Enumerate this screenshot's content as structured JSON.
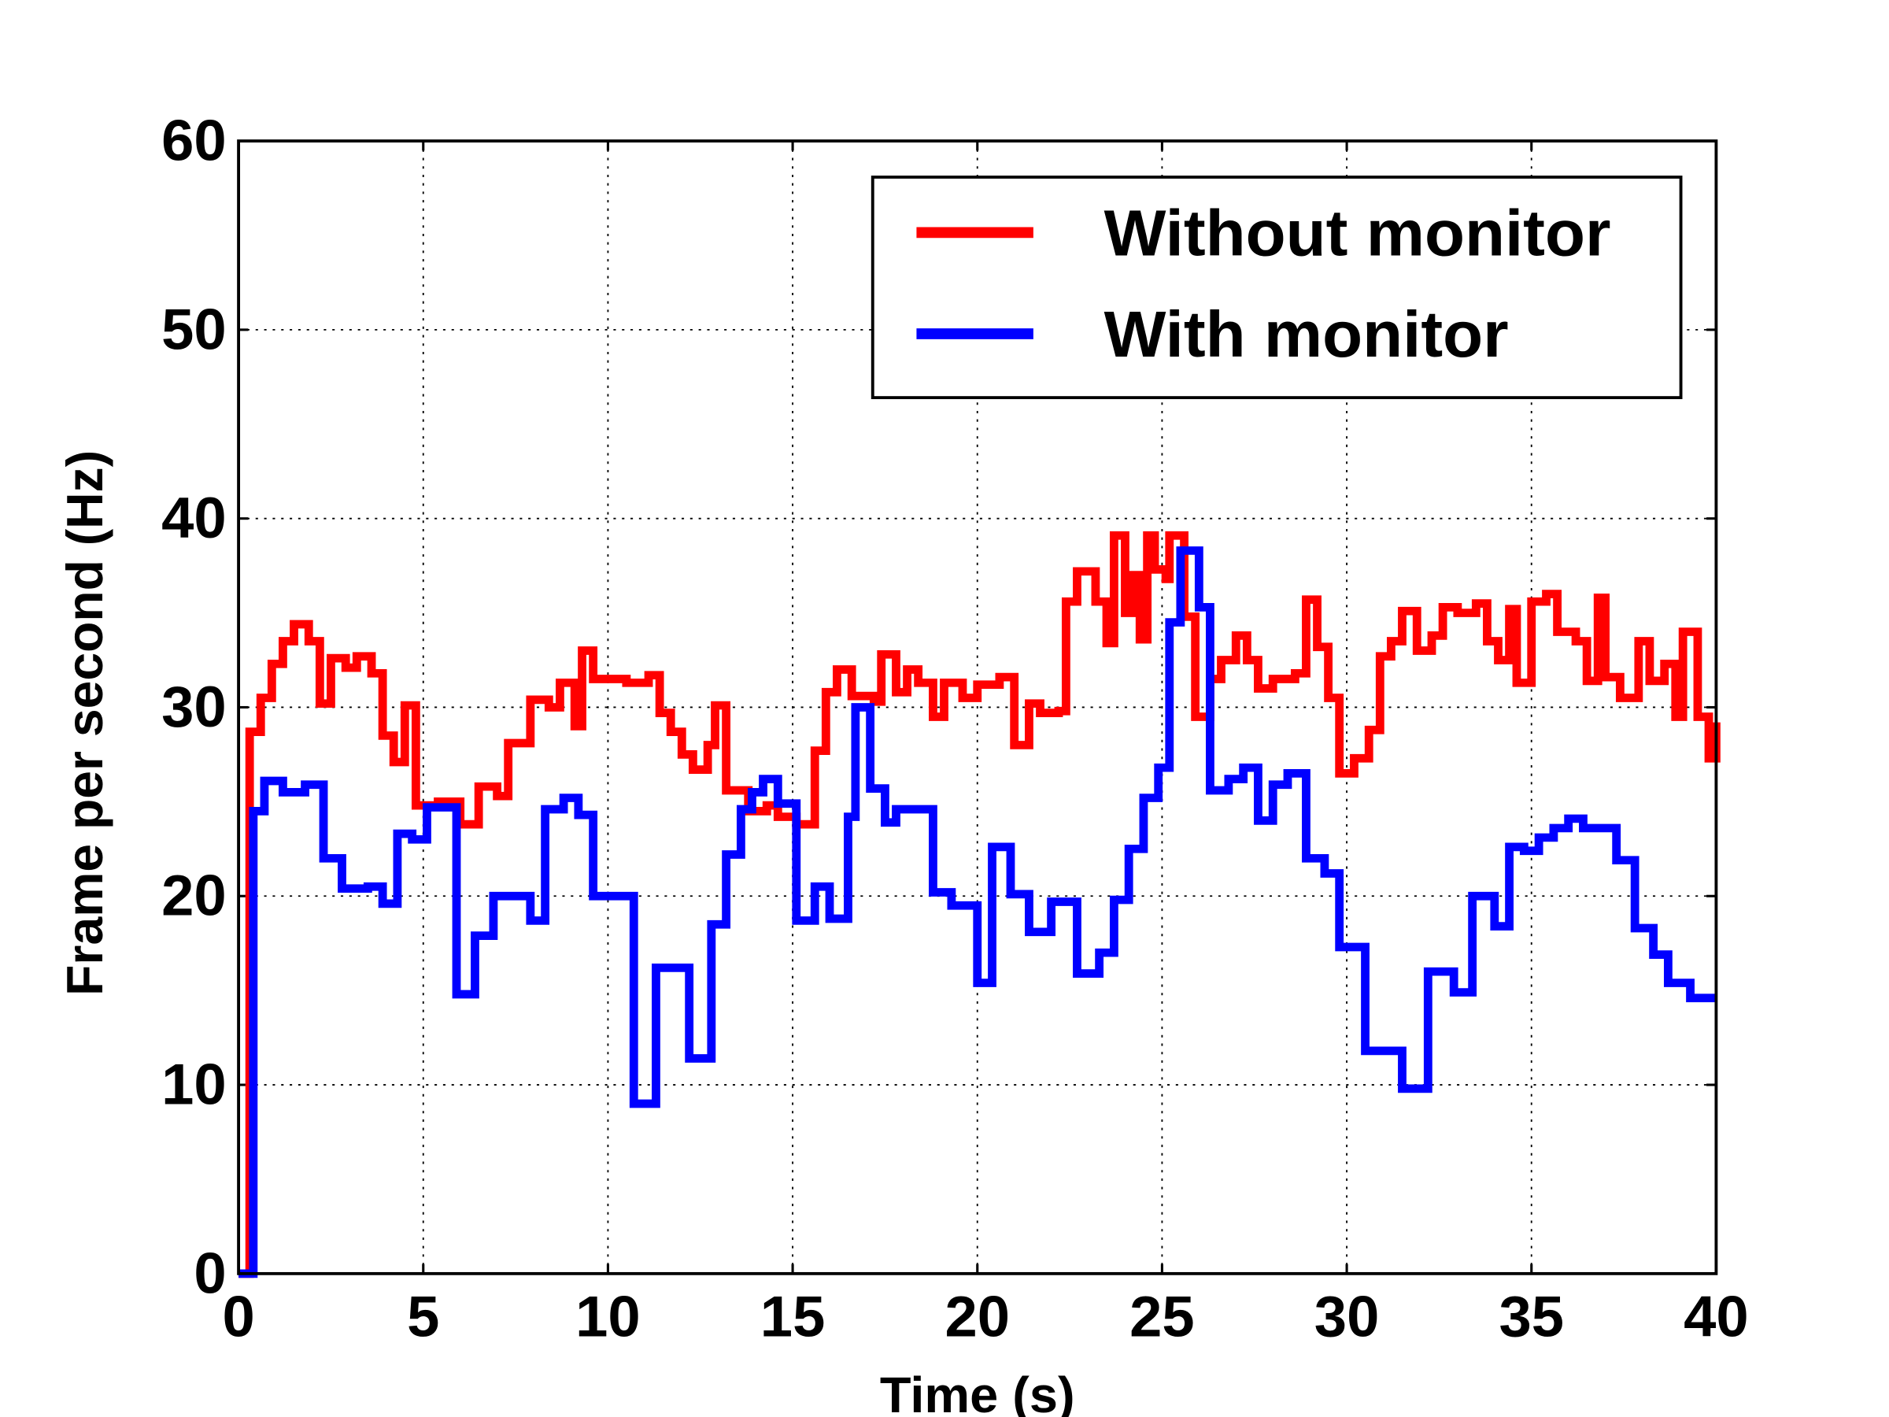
{
  "chart_data": {
    "type": "step",
    "xlabel": "Time (s)",
    "ylabel": "Frame per second (Hz)",
    "xlim": [
      0,
      40
    ],
    "ylim": [
      0,
      60
    ],
    "xticks": [
      0,
      5,
      10,
      15,
      20,
      25,
      30,
      35,
      40
    ],
    "yticks": [
      0,
      10,
      20,
      30,
      40,
      50,
      60
    ],
    "grid": true,
    "legend": "upper right",
    "series": [
      {
        "name": "Without monitor",
        "color": "#ff0000",
        "x": [
          0,
          0.3,
          0.6,
          0.9,
          1.2,
          1.5,
          1.9,
          2.2,
          2.5,
          2.9,
          3.2,
          3.6,
          3.9,
          4.2,
          4.5,
          4.8,
          5.4,
          6,
          6.5,
          7,
          7.3,
          7.9,
          8.4,
          8.7,
          9.1,
          9.3,
          9.6,
          10.1,
          10.5,
          11.1,
          11.4,
          11.7,
          12,
          12.3,
          12.7,
          12.9,
          13.2,
          13.8,
          14.3,
          14.6,
          15.1,
          15.6,
          15.9,
          16.2,
          16.6,
          17.2,
          17.4,
          17.8,
          18.1,
          18.4,
          18.8,
          19.1,
          19.6,
          20,
          20.6,
          21,
          21.4,
          21.7,
          22.2,
          22.4,
          22.7,
          23.2,
          23.5,
          23.7,
          24,
          24.2,
          24.4,
          24.6,
          24.8,
          25.1,
          25.2,
          25.6,
          25.9,
          26.3,
          26.6,
          27,
          27.3,
          27.6,
          28,
          28.6,
          28.9,
          29.2,
          29.5,
          29.8,
          30.2,
          30.6,
          30.9,
          31.2,
          31.5,
          31.9,
          32.3,
          32.6,
          33,
          33.5,
          33.8,
          34.1,
          34.4,
          34.6,
          35,
          35.4,
          35.7,
          36.2,
          36.5,
          36.8,
          37,
          37.4,
          37.9,
          38.2,
          38.6,
          38.9,
          39.1,
          39.5,
          39.8,
          40
        ],
        "values": [
          0,
          28.7,
          30.5,
          32.3,
          33.5,
          34.4,
          33.5,
          30.2,
          32.6,
          32.1,
          32.7,
          31.8,
          28.5,
          27.1,
          30.1,
          24.8,
          25,
          23.8,
          25.8,
          25.3,
          28.1,
          30.4,
          30,
          31.3,
          29,
          33,
          31.5,
          31.5,
          31.3,
          31.7,
          29.7,
          28.7,
          27.5,
          26.7,
          28,
          30.1,
          25.6,
          24.5,
          24.8,
          24.2,
          23.8,
          27.7,
          30.8,
          32,
          30.6,
          30.3,
          32.8,
          30.8,
          32,
          31.3,
          29.5,
          31.3,
          30.5,
          31.2,
          31.6,
          28,
          30.2,
          29.7,
          29.8,
          35.6,
          37.2,
          35.6,
          33.4,
          39.1,
          35,
          37,
          33.6,
          39.1,
          37.3,
          36.8,
          39.1,
          34.8,
          29.5,
          31.5,
          32.5,
          33.8,
          32.5,
          31,
          31.5,
          31.8,
          35.7,
          33.2,
          30.5,
          26.5,
          27.3,
          28.8,
          32.7,
          33.5,
          35.1,
          33,
          33.8,
          35.3,
          35,
          35.5,
          33.5,
          32.5,
          35.2,
          31.3,
          35.6,
          36,
          34,
          33.5,
          31.4,
          35.8,
          31.6,
          30.5,
          33.5,
          31.4,
          32.3,
          29.5,
          34,
          29.5,
          27.3,
          29.2
        ]
      },
      {
        "name": "With monitor",
        "color": "#0000ff",
        "x": [
          0,
          0.4,
          0.7,
          1.2,
          1.8,
          2.3,
          2.8,
          3.5,
          3.9,
          4.3,
          4.7,
          5.1,
          5.7,
          5.9,
          6.4,
          6.9,
          7.9,
          8.3,
          8.8,
          9.2,
          9.6,
          10.7,
          11.3,
          12.2,
          12.8,
          13.2,
          13.6,
          13.9,
          14.2,
          14.6,
          15.1,
          15.6,
          16,
          16.5,
          16.7,
          17.1,
          17.5,
          17.8,
          18.8,
          19.3,
          20,
          20.4,
          20.9,
          21.4,
          22,
          22.7,
          23.3,
          23.7,
          24.1,
          24.5,
          24.9,
          25.2,
          25.5,
          26,
          26.3,
          26.8,
          27.2,
          27.6,
          28,
          28.4,
          28.9,
          29.4,
          29.8,
          30.5,
          31.5,
          32.2,
          32.9,
          33.4,
          34,
          34.4,
          34.8,
          35.2,
          35.6,
          36,
          36.4,
          37.3,
          37.8,
          38.3,
          38.7,
          39.3,
          40
        ],
        "values": [
          0,
          24.5,
          26.1,
          25.5,
          25.9,
          22,
          20.4,
          20.5,
          19.6,
          23.3,
          23,
          24.7,
          24.7,
          14.8,
          17.9,
          20,
          18.7,
          24.6,
          25.2,
          24.3,
          20,
          9,
          16.2,
          11.4,
          18.5,
          22.2,
          24.6,
          25.5,
          26.2,
          24.9,
          18.7,
          20.5,
          18.8,
          24.2,
          30,
          25.7,
          23.9,
          24.6,
          20.2,
          19.5,
          15.4,
          22.6,
          20.1,
          18.1,
          19.7,
          15.9,
          17,
          19.8,
          22.5,
          25.2,
          26.8,
          34.5,
          38.3,
          35.3,
          25.6,
          26.2,
          26.8,
          24,
          25.9,
          26.5,
          22,
          21.2,
          17.3,
          11.8,
          9.8,
          16,
          14.9,
          20,
          18.4,
          22.6,
          22.4,
          23.1,
          23.6,
          24.1,
          23.6,
          21.9,
          18.3,
          16.9,
          15.4,
          14.6,
          14.6
        ]
      }
    ]
  }
}
